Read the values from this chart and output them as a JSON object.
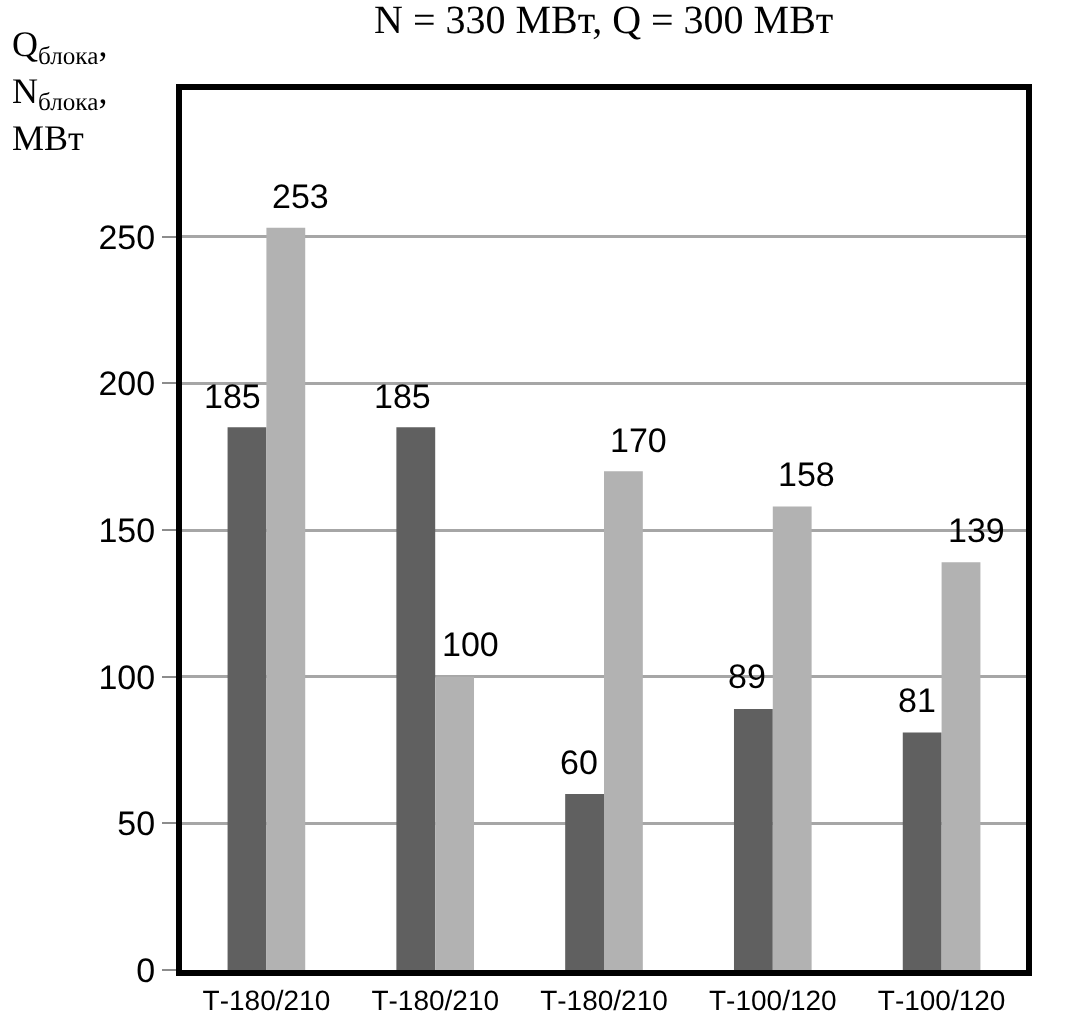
{
  "chart_data": {
    "type": "bar",
    "title": "N = 330 МВт, Q = 300 МВт",
    "ylabel": "Q$_{блока}$,\nN$_{блока}$,\nМВт",
    "categories": [
      "Т-180/210",
      "Т-180/210",
      "Т-180/210",
      "Т-100/120",
      "Т-100/120"
    ],
    "series": [
      {
        "color": "#606060",
        "values": [
          185,
          185,
          60,
          89,
          81
        ]
      },
      {
        "color": "#b2b2b2",
        "values": [
          253,
          100,
          170,
          158,
          139
        ]
      }
    ],
    "ylim": [
      0,
      300
    ],
    "yticks": [
      0,
      50,
      100,
      150,
      200,
      250
    ],
    "grid": "y",
    "data_labels": true
  }
}
